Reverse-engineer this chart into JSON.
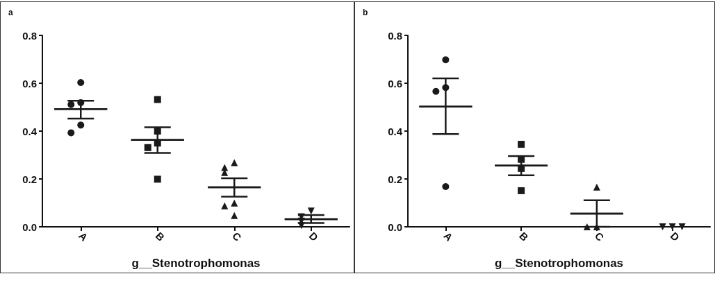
{
  "chart_data": [
    {
      "type": "scatter",
      "title": "a",
      "xlabel": "g__Stenotrophomonas",
      "categories": [
        "A",
        "B",
        "C",
        "D"
      ],
      "ylim": [
        0,
        0.8
      ],
      "yticks": [
        {
          "value": 0,
          "label": "0.0"
        },
        {
          "value": 0.2,
          "label": "0.2"
        },
        {
          "value": 0.4,
          "label": "0.4"
        },
        {
          "value": 0.6,
          "label": "0.6"
        },
        {
          "value": 0.8,
          "label": "0.8"
        }
      ],
      "series": [
        {
          "color": "#1a1a1a",
          "marker": "circle",
          "x": [
            "A",
            "A",
            "A",
            "A",
            "A"
          ],
          "values": [
            0.603,
            0.519,
            0.511,
            0.425,
            0.393
          ]
        },
        {
          "color": "#1a1a1a",
          "marker": "square",
          "x": [
            "B",
            "B",
            "B",
            "B",
            "B"
          ],
          "values": [
            0.532,
            0.4,
            0.35,
            0.331,
            0.199
          ]
        },
        {
          "color": "#1a1a1a",
          "marker": "triangle",
          "x": [
            "C",
            "C",
            "C",
            "C",
            "C",
            "C"
          ],
          "values": [
            0.268,
            0.248,
            0.227,
            0.099,
            0.088,
            0.047
          ]
        },
        {
          "color": "#1a1a1a",
          "marker": "triangle_down",
          "x": [
            "D",
            "D",
            "D",
            "D"
          ],
          "values": [
            0.066,
            0.042,
            0.024,
            0.005
          ]
        },
        {
          "type": "box",
          "color": "#1a1a1a",
          "boxes": [
            {
              "low": 0.452,
              "q1": 0.492,
              "median": 0.492,
              "q3": 0.492,
              "high": 0.527
            },
            {
              "low": 0.309,
              "q1": 0.363,
              "median": 0.363,
              "q3": 0.363,
              "high": 0.416
            },
            {
              "low": 0.126,
              "q1": 0.165,
              "median": 0.165,
              "q3": 0.165,
              "high": 0.203
            },
            {
              "low": 0.016,
              "q1": 0.032,
              "median": 0.032,
              "q3": 0.032,
              "high": 0.049
            }
          ]
        }
      ]
    },
    {
      "type": "scatter",
      "title": "b",
      "xlabel": "g__Stenotrophomonas",
      "categories": [
        "A",
        "B",
        "C",
        "D"
      ],
      "ylim": [
        0,
        0.8
      ],
      "yticks": [
        {
          "value": 0,
          "label": "0.0"
        },
        {
          "value": 0.2,
          "label": "0.2"
        },
        {
          "value": 0.4,
          "label": "0.4"
        },
        {
          "value": 0.6,
          "label": "0.6"
        },
        {
          "value": 0.8,
          "label": "0.8"
        }
      ],
      "series": [
        {
          "color": "#1a1a1a",
          "marker": "circle",
          "x": [
            "A",
            "A",
            "A",
            "A"
          ],
          "values": [
            0.698,
            0.582,
            0.566,
            0.168
          ]
        },
        {
          "color": "#1a1a1a",
          "marker": "square",
          "x": [
            "B",
            "B",
            "B",
            "B"
          ],
          "values": [
            0.345,
            0.282,
            0.244,
            0.151
          ]
        },
        {
          "color": "#1a1a1a",
          "marker": "triangle",
          "x": [
            "C",
            "C",
            "C"
          ],
          "values": [
            0.166,
            0,
            0
          ]
        },
        {
          "color": "#1a1a1a",
          "marker": "triangle_down",
          "x": [
            "D",
            "D",
            "D"
          ],
          "values": [
            0,
            0,
            0
          ]
        },
        {
          "type": "box",
          "color": "#1a1a1a",
          "boxes": [
            {
              "low": 0.388,
              "q1": 0.502,
              "median": 0.502,
              "q3": 0.502,
              "high": 0.62
            },
            {
              "low": 0.215,
              "q1": 0.256,
              "median": 0.256,
              "q3": 0.256,
              "high": 0.296
            },
            {
              "low": 0,
              "q1": 0.055,
              "median": 0.055,
              "q3": 0.055,
              "high": 0.111
            },
            null
          ]
        }
      ]
    }
  ]
}
